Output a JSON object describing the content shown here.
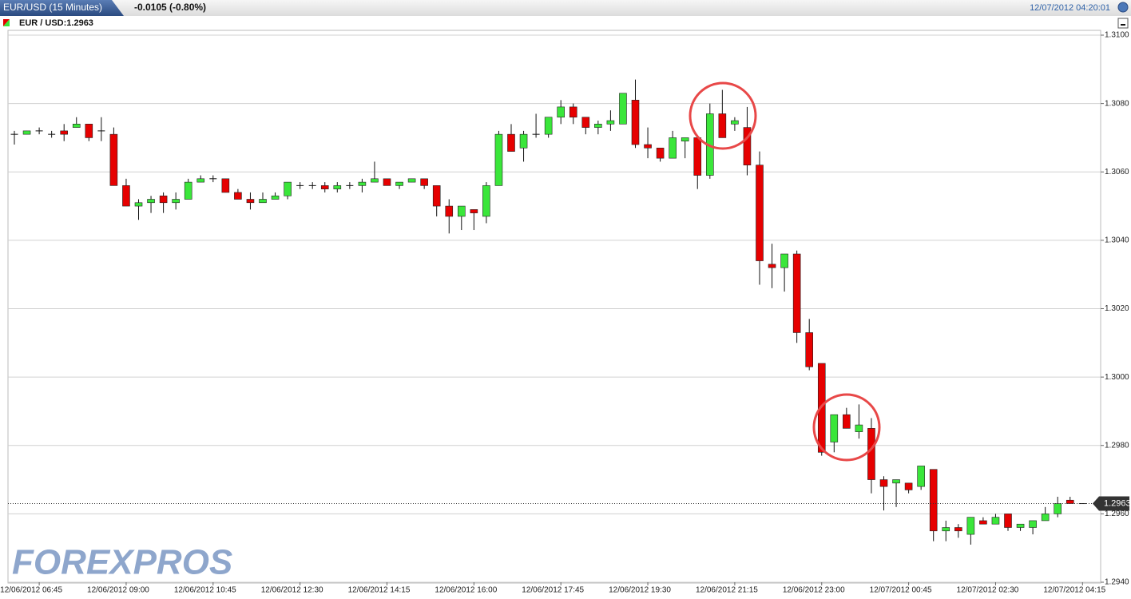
{
  "header": {
    "title": "EUR/USD (15 Minutes)",
    "change": "-0.0105 (-0.80%)",
    "timestamp": "12/07/2012 04:20:01"
  },
  "watermark": "FOREXPROS",
  "chart_data": {
    "type": "candlestick",
    "legend_label": "EUR / USD:1.2963",
    "x": [
      null,
      null,
      "12/06/2012 06:45",
      null,
      null,
      null,
      null,
      null,
      null,
      "12/06/2012 09:00",
      null,
      null,
      null,
      null,
      null,
      null,
      "12/06/2012 10:45",
      null,
      null,
      null,
      null,
      null,
      null,
      "12/06/2012 12:30",
      null,
      null,
      null,
      null,
      null,
      null,
      "12/06/2012 14:15",
      null,
      null,
      null,
      null,
      null,
      null,
      "12/06/2012 16:00",
      null,
      null,
      null,
      null,
      null,
      null,
      "12/06/2012 17:45",
      null,
      null,
      null,
      null,
      null,
      null,
      "12/06/2012 19:30",
      null,
      null,
      null,
      null,
      null,
      null,
      "12/06/2012 21:15",
      null,
      null,
      null,
      null,
      null,
      null,
      "12/06/2012 23:00",
      null,
      null,
      null,
      null,
      null,
      null,
      "12/07/2012 00:45",
      null,
      null,
      null,
      null,
      null,
      null,
      "12/07/2012 02:30",
      null,
      null,
      null,
      null,
      null,
      null,
      "12/07/2012 04:15"
    ],
    "open": [
      1.3071,
      1.3071,
      1.3072,
      1.3071,
      1.3072,
      1.3073,
      1.3074,
      1.3072,
      1.3071,
      1.3056,
      1.305,
      1.3051,
      1.3053,
      1.3051,
      1.3052,
      1.3057,
      1.3058,
      1.3058,
      1.3054,
      1.3052,
      1.3051,
      1.3052,
      1.3053,
      1.3056,
      1.3056,
      1.3056,
      1.3055,
      1.3056,
      1.3056,
      1.3057,
      1.3058,
      1.3056,
      1.3057,
      1.3058,
      1.3056,
      1.305,
      1.3047,
      1.3049,
      1.3047,
      1.3056,
      1.3071,
      1.3067,
      1.3071,
      1.3071,
      1.3076,
      1.3079,
      1.3076,
      1.3073,
      1.3074,
      1.3074,
      1.3081,
      1.3068,
      1.3067,
      1.3064,
      1.3069,
      1.307,
      1.3059,
      1.3077,
      1.3074,
      1.3073,
      1.3062,
      1.3033,
      1.3032,
      1.3036,
      1.3013,
      1.3004,
      1.2981,
      1.2989,
      1.2984,
      1.2985,
      1.297,
      1.2969,
      1.2969,
      1.2968,
      1.2973,
      1.2955,
      1.2956,
      1.2954,
      1.2958,
      1.2957,
      1.296,
      1.2956,
      1.2956,
      1.2958,
      1.296,
      1.2964,
      1.2963
    ],
    "high": [
      1.3072,
      1.3072,
      1.3073,
      1.3072,
      1.3074,
      1.3076,
      1.3074,
      1.3076,
      1.3073,
      1.3058,
      1.3052,
      1.3053,
      1.3054,
      1.3054,
      1.3058,
      1.3059,
      1.3059,
      1.3058,
      1.3055,
      1.3054,
      1.3054,
      1.3054,
      1.3057,
      1.3057,
      1.3057,
      1.3057,
      1.3057,
      1.3057,
      1.3058,
      1.3063,
      1.3058,
      1.3057,
      1.3058,
      1.3058,
      1.3056,
      1.3052,
      1.305,
      1.3049,
      1.3057,
      1.3072,
      1.3074,
      1.3072,
      1.3077,
      1.3076,
      1.3081,
      1.308,
      1.3076,
      1.3075,
      1.3078,
      1.3083,
      1.3087,
      1.3073,
      1.3067,
      1.3072,
      1.307,
      1.307,
      1.308,
      1.3084,
      1.3076,
      1.3079,
      1.3066,
      1.3039,
      1.3036,
      1.3037,
      1.3017,
      1.3004,
      1.2989,
      1.2991,
      1.2992,
      1.2988,
      1.2971,
      1.297,
      1.2969,
      1.2974,
      1.2973,
      1.2958,
      1.2957,
      1.2959,
      1.2959,
      1.296,
      1.296,
      1.2957,
      1.2958,
      1.2962,
      1.2965,
      1.2965,
      1.2963
    ],
    "low": [
      1.3068,
      1.3071,
      1.3071,
      1.307,
      1.3069,
      1.3073,
      1.3069,
      1.3069,
      1.3056,
      1.305,
      1.3046,
      1.3048,
      1.3048,
      1.3049,
      1.3052,
      1.3057,
      1.3057,
      1.3054,
      1.3052,
      1.3049,
      1.3051,
      1.3052,
      1.3052,
      1.3055,
      1.3055,
      1.3054,
      1.3054,
      1.3055,
      1.3054,
      1.3057,
      1.3056,
      1.3055,
      1.3057,
      1.3055,
      1.3047,
      1.3042,
      1.3043,
      1.3043,
      1.3045,
      1.3056,
      1.3066,
      1.3063,
      1.307,
      1.307,
      1.3074,
      1.3074,
      1.3071,
      1.3071,
      1.3072,
      1.3074,
      1.3067,
      1.3064,
      1.3063,
      1.3064,
      1.3064,
      1.3055,
      1.3058,
      1.307,
      1.3072,
      1.3059,
      1.3027,
      1.3026,
      1.3025,
      1.301,
      1.3002,
      1.2977,
      1.2978,
      1.2985,
      1.2982,
      1.2966,
      1.2961,
      1.2962,
      1.2966,
      1.2967,
      1.2952,
      1.2952,
      1.2953,
      1.2951,
      1.2957,
      1.2957,
      1.2955,
      1.2955,
      1.2954,
      1.2958,
      1.2959,
      1.2963,
      1.2963
    ],
    "close": [
      1.3071,
      1.3072,
      1.3072,
      1.3071,
      1.3071,
      1.3074,
      1.307,
      1.3072,
      1.3056,
      1.305,
      1.3051,
      1.3052,
      1.3051,
      1.3052,
      1.3057,
      1.3058,
      1.3058,
      1.3054,
      1.3052,
      1.3051,
      1.3052,
      1.3053,
      1.3057,
      1.3056,
      1.3056,
      1.3055,
      1.3056,
      1.3056,
      1.3057,
      1.3058,
      1.3056,
      1.3057,
      1.3058,
      1.3056,
      1.305,
      1.3047,
      1.305,
      1.3048,
      1.3056,
      1.3071,
      1.3066,
      1.3071,
      1.3071,
      1.3076,
      1.3079,
      1.3076,
      1.3073,
      1.3074,
      1.3075,
      1.3083,
      1.3068,
      1.3067,
      1.3064,
      1.307,
      1.307,
      1.3059,
      1.3077,
      1.307,
      1.3075,
      1.3062,
      1.3034,
      1.3032,
      1.3036,
      1.3013,
      1.3003,
      1.2978,
      1.2989,
      1.2985,
      1.2986,
      1.297,
      1.2968,
      1.297,
      1.2967,
      1.2974,
      1.2955,
      1.2956,
      1.2955,
      1.2959,
      1.2957,
      1.2959,
      1.2956,
      1.2957,
      1.2958,
      1.296,
      1.2963,
      1.2963,
      1.2963
    ],
    "up_color": "#3ae63a",
    "down_color": "#e60000",
    "ylim": [
      1.294,
      1.31
    ],
    "yticks": [
      {
        "value": 1.294,
        "label": "1.2940"
      },
      {
        "value": 1.296,
        "label": "1.2960"
      },
      {
        "value": 1.298,
        "label": "1.2980"
      },
      {
        "value": 1.3,
        "label": "1.3000"
      },
      {
        "value": 1.302,
        "label": "1.3020"
      },
      {
        "value": 1.304,
        "label": "1.3040"
      },
      {
        "value": 1.306,
        "label": "1.3060"
      },
      {
        "value": 1.308,
        "label": "1.3080"
      },
      {
        "value": 1.31,
        "label": "1.3100"
      }
    ],
    "grid": true,
    "last_price": {
      "value": 1.2963,
      "label": "1.2963"
    }
  }
}
